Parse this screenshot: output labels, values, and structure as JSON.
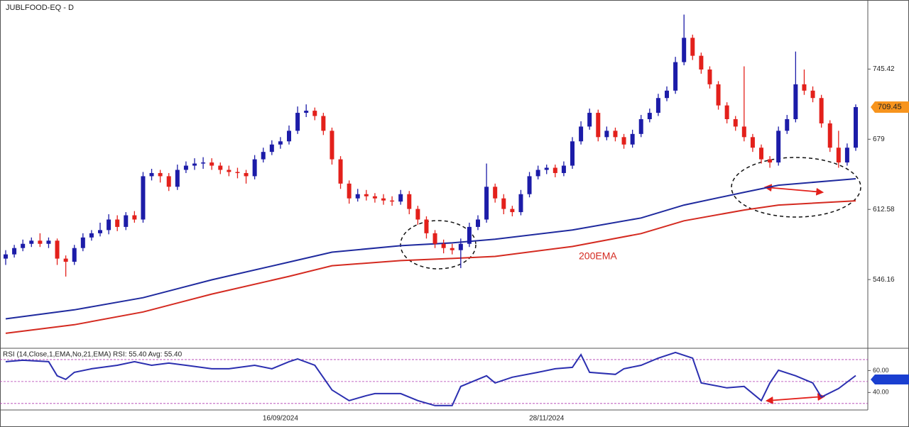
{
  "chart_data": {
    "type": "candlestick",
    "title": "JUBLFOOD-EQ - D",
    "up_color": "#1c1ca8",
    "down_color": "#e3201b",
    "categories": [
      null,
      null,
      null,
      null,
      null,
      null,
      null,
      null,
      null,
      null,
      null,
      null,
      null,
      null,
      null,
      null,
      null,
      null,
      null,
      null,
      null,
      null,
      null,
      null,
      null,
      null,
      null,
      null,
      null,
      null,
      null,
      null,
      "16/09/2024",
      null,
      null,
      null,
      null,
      null,
      null,
      null,
      null,
      null,
      null,
      null,
      null,
      null,
      null,
      null,
      null,
      null,
      null,
      null,
      null,
      null,
      null,
      null,
      null,
      null,
      null,
      null,
      null,
      null,
      null,
      "28/11/2024",
      null,
      null,
      null,
      null,
      null,
      null,
      null,
      null,
      null,
      null,
      null,
      null,
      null,
      null,
      null,
      null,
      null,
      null,
      null,
      null,
      null,
      null,
      null,
      null,
      null,
      null,
      null,
      null,
      null,
      null,
      null,
      null,
      null,
      null,
      null,
      null
    ],
    "candles": [
      [
        566,
        574,
        560,
        570
      ],
      [
        570,
        579,
        567,
        576
      ],
      [
        576,
        584,
        573,
        580
      ],
      [
        580,
        586,
        577,
        583
      ],
      [
        583,
        590,
        577,
        580
      ],
      [
        580,
        586,
        576,
        583
      ],
      [
        583,
        585,
        560,
        566
      ],
      [
        566,
        569,
        549,
        563
      ],
      [
        563,
        579,
        560,
        576
      ],
      [
        576,
        590,
        573,
        586
      ],
      [
        586,
        593,
        583,
        590
      ],
      [
        590,
        600,
        587,
        593
      ],
      [
        593,
        608,
        589,
        603
      ],
      [
        603,
        607,
        592,
        596
      ],
      [
        596,
        610,
        593,
        607
      ],
      [
        607,
        611,
        600,
        603
      ],
      [
        603,
        648,
        600,
        644
      ],
      [
        644,
        651,
        640,
        647
      ],
      [
        647,
        650,
        638,
        644
      ],
      [
        644,
        647,
        630,
        634
      ],
      [
        634,
        655,
        631,
        650
      ],
      [
        650,
        658,
        647,
        654
      ],
      [
        654,
        661,
        650,
        656
      ],
      [
        656,
        662,
        651,
        657
      ],
      [
        657,
        661,
        650,
        654
      ],
      [
        654,
        657,
        646,
        650
      ],
      [
        650,
        654,
        644,
        648
      ],
      [
        648,
        652,
        642,
        647
      ],
      [
        647,
        650,
        637,
        644
      ],
      [
        644,
        664,
        641,
        660
      ],
      [
        660,
        671,
        657,
        667
      ],
      [
        667,
        678,
        664,
        674
      ],
      [
        674,
        681,
        670,
        677
      ],
      [
        677,
        692,
        674,
        687
      ],
      [
        687,
        710,
        684,
        704
      ],
      [
        704,
        712,
        700,
        706
      ],
      [
        706,
        709,
        697,
        701
      ],
      [
        701,
        704,
        683,
        687
      ],
      [
        687,
        690,
        655,
        660
      ],
      [
        660,
        663,
        632,
        637
      ],
      [
        637,
        640,
        618,
        623
      ],
      [
        623,
        632,
        620,
        627
      ],
      [
        627,
        631,
        621,
        625
      ],
      [
        625,
        628,
        619,
        623
      ],
      [
        623,
        627,
        617,
        621
      ],
      [
        621,
        625,
        616,
        620
      ],
      [
        620,
        631,
        617,
        627
      ],
      [
        627,
        630,
        608,
        613
      ],
      [
        613,
        616,
        598,
        603
      ],
      [
        603,
        606,
        585,
        590
      ],
      [
        590,
        593,
        576,
        580
      ],
      [
        580,
        584,
        571,
        576
      ],
      [
        576,
        580,
        570,
        574
      ],
      [
        574,
        585,
        557,
        580
      ],
      [
        580,
        600,
        577,
        596
      ],
      [
        596,
        607,
        593,
        603
      ],
      [
        603,
        656,
        600,
        634
      ],
      [
        634,
        637,
        619,
        623
      ],
      [
        623,
        627,
        608,
        613
      ],
      [
        613,
        616,
        606,
        610
      ],
      [
        610,
        631,
        607,
        627
      ],
      [
        627,
        648,
        624,
        644
      ],
      [
        644,
        654,
        641,
        650
      ],
      [
        650,
        655,
        646,
        652
      ],
      [
        652,
        655,
        643,
        647
      ],
      [
        647,
        658,
        644,
        654
      ],
      [
        654,
        681,
        651,
        677
      ],
      [
        677,
        696,
        674,
        691
      ],
      [
        691,
        708,
        688,
        704
      ],
      [
        704,
        707,
        677,
        681
      ],
      [
        681,
        691,
        678,
        687
      ],
      [
        687,
        690,
        677,
        681
      ],
      [
        681,
        684,
        670,
        674
      ],
      [
        674,
        688,
        671,
        684
      ],
      [
        684,
        702,
        681,
        698
      ],
      [
        698,
        708,
        695,
        704
      ],
      [
        704,
        722,
        701,
        718
      ],
      [
        718,
        729,
        715,
        725
      ],
      [
        725,
        757,
        722,
        752
      ],
      [
        752,
        797,
        749,
        775
      ],
      [
        775,
        778,
        754,
        758
      ],
      [
        758,
        761,
        741,
        745
      ],
      [
        745,
        748,
        727,
        731
      ],
      [
        731,
        734,
        707,
        711
      ],
      [
        711,
        714,
        694,
        698
      ],
      [
        698,
        701,
        687,
        691
      ],
      [
        691,
        748,
        677,
        681
      ],
      [
        681,
        684,
        667,
        671
      ],
      [
        671,
        674,
        656,
        660
      ],
      [
        660,
        663,
        652,
        657
      ],
      [
        657,
        691,
        654,
        687
      ],
      [
        687,
        702,
        684,
        698
      ],
      [
        698,
        762,
        695,
        731
      ],
      [
        731,
        745,
        721,
        725
      ],
      [
        725,
        729,
        714,
        718
      ],
      [
        718,
        721,
        690,
        694
      ],
      [
        694,
        697,
        667,
        671
      ],
      [
        671,
        687,
        652,
        657
      ],
      [
        657,
        675,
        654,
        671
      ],
      [
        671,
        712,
        668,
        709.45
      ]
    ],
    "ylim": [
      481.8,
      810.8
    ],
    "yticks": [
      745.42,
      679,
      612.58,
      546.16
    ],
    "last_price_color": "#f7941d",
    "overlays": [
      {
        "color": "#1f2a9e",
        "x": [
          0,
          8,
          16,
          24,
          33,
          38,
          46,
          52,
          57,
          66,
          74,
          79,
          86,
          90,
          99
        ],
        "values": [
          509,
          517.5,
          529,
          545.9,
          562.7,
          572.1,
          578.2,
          580.9,
          584.3,
          593.1,
          604.5,
          616.7,
          628.8,
          635.5,
          641.6
        ]
      },
      {
        "color": "#d42a20",
        "x": [
          0,
          8,
          16,
          24,
          33,
          38,
          46,
          52,
          57,
          66,
          74,
          79,
          86,
          90,
          99
        ],
        "values": [
          495.3,
          503.4,
          515.5,
          532.4,
          549.2,
          559.3,
          564.1,
          566.1,
          568.1,
          577.5,
          589.7,
          601.8,
          612,
          616.7,
          620.7
        ]
      }
    ],
    "annotation": "200EMA",
    "rsi": {
      "title": "RSI (14,Close,1,EMA,No,21,EMA) RSI: 55.40 Avg: 55.40",
      "color": "#2b2fb0",
      "level_color": "#b03ab0",
      "x": [
        0,
        2,
        5,
        6,
        7,
        8,
        10,
        13,
        15,
        17,
        19,
        21,
        24,
        26,
        29,
        31,
        33,
        34,
        36,
        38,
        40,
        42,
        43,
        46,
        48,
        50,
        52,
        53,
        56,
        57,
        59,
        62,
        64,
        66,
        67,
        68,
        71,
        72,
        74,
        76,
        78,
        80,
        81,
        84,
        86,
        88,
        89,
        90,
        92,
        94,
        95,
        97,
        99
      ],
      "values": [
        68.1,
        69.4,
        68.1,
        55.2,
        51.9,
        58.4,
        61.6,
        64.8,
        68.1,
        64.8,
        66.8,
        64.8,
        61.6,
        61.6,
        64.8,
        61.6,
        68.1,
        70.6,
        64.8,
        42.3,
        32.6,
        37.1,
        39,
        39,
        32.6,
        28.1,
        28.1,
        45.5,
        55.2,
        48.7,
        53.9,
        58.4,
        61.6,
        62.9,
        74.5,
        58.4,
        56.5,
        61.6,
        64.8,
        71.3,
        76.5,
        71.3,
        48.7,
        44.2,
        45.5,
        32.6,
        48.7,
        60.3,
        55.2,
        48.7,
        35.8,
        43.6,
        55.4
      ],
      "ylim": [
        26,
        79
      ],
      "yticks": [
        {
          "value": 60,
          "label": "60.00"
        },
        {
          "value": 40,
          "label": "40.00"
        }
      ],
      "levels": [
        70,
        50,
        30
      ]
    }
  }
}
